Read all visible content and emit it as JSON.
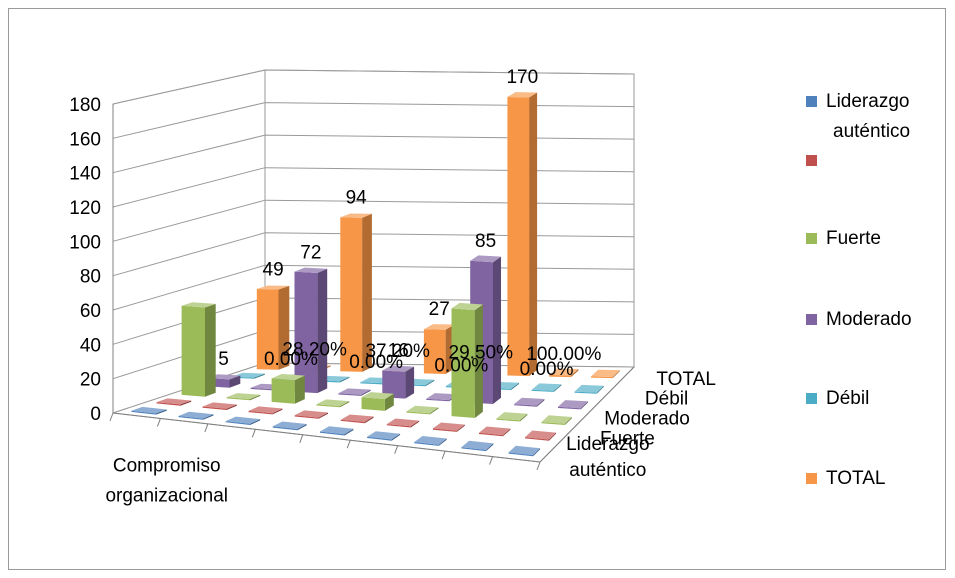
{
  "chart_data": {
    "type": "bar",
    "title": "",
    "categories": [
      "Compromiso organizacional",
      "",
      "",
      "",
      "",
      "",
      "",
      "",
      ""
    ],
    "depth_labels": [
      "Liderazgo auténtico",
      "Fuerte",
      "Moderado",
      "Débil",
      "TOTAL"
    ],
    "ylim": [
      0,
      180
    ],
    "yticks": [
      "0",
      "20",
      "40",
      "60",
      "80",
      "100",
      "120",
      "140",
      "160",
      "180"
    ],
    "grid": true,
    "legend_position": "right",
    "series": [
      {
        "name": "Liderazgo auténtico",
        "color": "#4F81BD",
        "values": [
          0,
          0,
          0,
          0,
          0,
          0,
          0,
          0,
          0
        ]
      },
      {
        "name": "",
        "color": "#C0504D",
        "values": [
          0,
          0,
          0,
          0,
          0,
          0,
          0,
          0,
          0
        ]
      },
      {
        "name": "Fuerte",
        "color": "#9BBB59",
        "values": [
          53,
          0,
          14,
          0,
          7,
          0,
          64,
          0,
          0
        ]
      },
      {
        "name": "Moderado",
        "color": "#8064A2",
        "values": [
          5,
          0,
          72,
          0,
          16,
          0,
          85,
          0,
          0
        ]
      },
      {
        "name": "Débil",
        "color": "#4BACC6",
        "values": [
          0,
          0,
          0,
          0,
          0,
          0,
          0,
          0,
          0
        ]
      },
      {
        "name": "TOTAL",
        "color": "#F79646",
        "values": [
          49,
          0.282,
          94,
          0.372,
          27,
          0.295,
          170,
          1,
          0
        ]
      }
    ],
    "data_labels": [
      {
        "series": "TOTAL",
        "index": 0,
        "text": "49"
      },
      {
        "series": "Moderado",
        "index": 2,
        "text": "72"
      },
      {
        "series": "TOTAL",
        "index": 2,
        "text": "94"
      },
      {
        "series": "TOTAL",
        "index": 4,
        "text": "27"
      },
      {
        "series": "Moderado",
        "index": 6,
        "text": "85"
      },
      {
        "series": "TOTAL",
        "index": 6,
        "text": "170"
      },
      {
        "series": "Moderado",
        "index": 0,
        "text": "5"
      },
      {
        "series": "Moderado",
        "index": 4,
        "text": "16"
      },
      {
        "series": "TOTAL",
        "index": 1,
        "text": "28.20%"
      },
      {
        "series": "TOTAL",
        "index": 3,
        "text": "37.20%"
      },
      {
        "series": "TOTAL",
        "index": 5,
        "text": "29.50%"
      },
      {
        "series": "TOTAL",
        "index": 7,
        "text": "100.00%"
      },
      {
        "series": "Débil",
        "index": 1,
        "text": "0.00%"
      },
      {
        "series": "Débil",
        "index": 3,
        "text": "0.00%"
      },
      {
        "series": "Débil",
        "index": 5,
        "text": "0.00%"
      },
      {
        "series": "Débil",
        "index": 7,
        "text": "0.00%"
      }
    ]
  }
}
